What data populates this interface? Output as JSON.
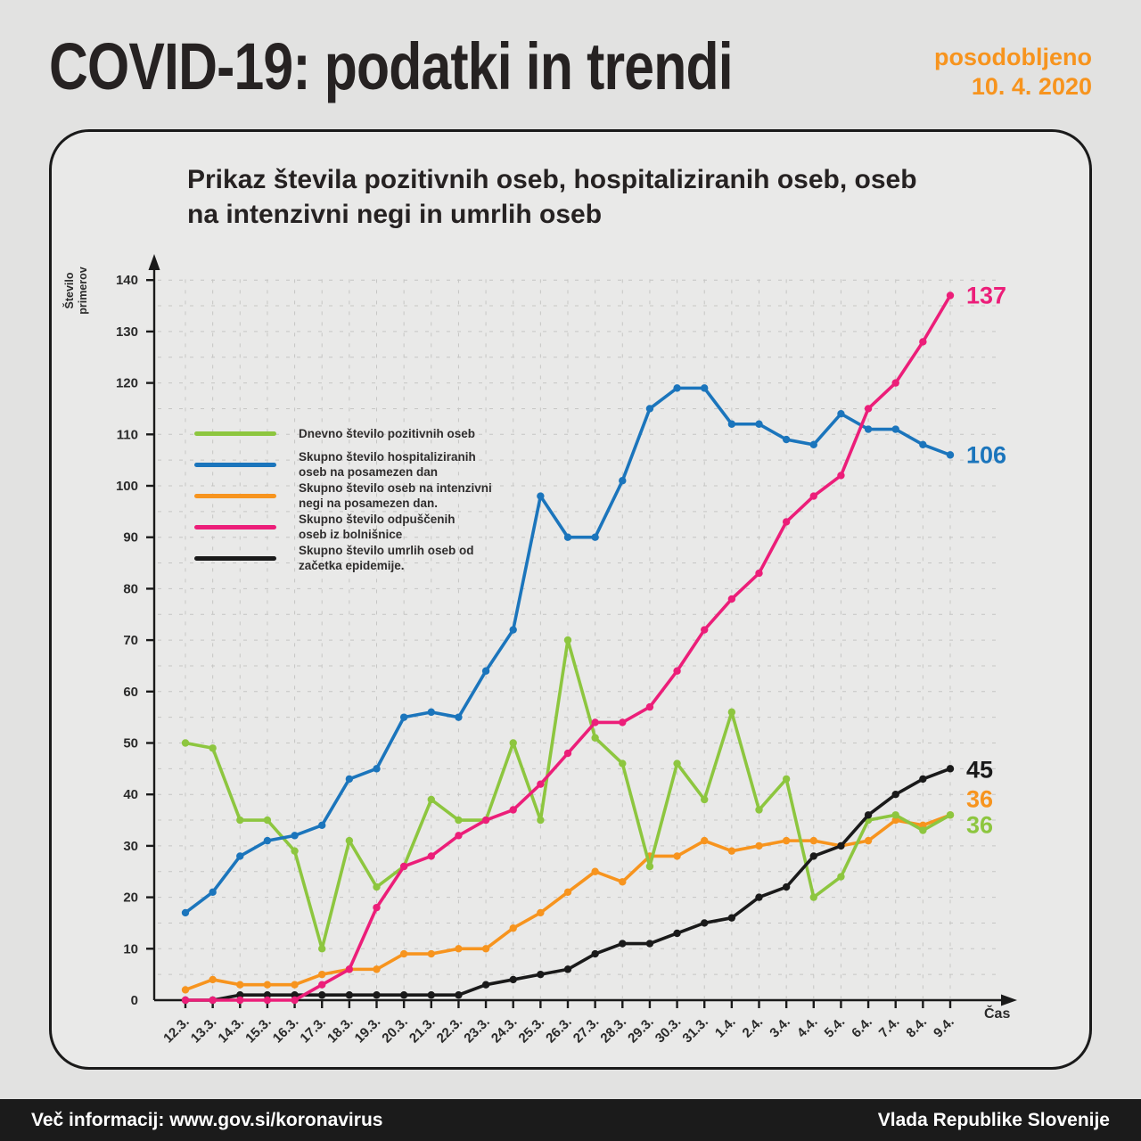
{
  "header": {
    "title": "COVID-19: podatki in trendi",
    "updated_line1": "posodobljeno",
    "updated_line2": "10. 4. 2020"
  },
  "panel": {
    "title": "Prikaz števila pozitivnih oseb, hospitaliziranih oseb, oseb\nna intenzivni negi in umrlih oseb"
  },
  "footer": {
    "left": "Več informacij: www.gov.si/koronavirus",
    "right": "Vlada Republike Slovenije"
  },
  "colors": {
    "accent_orange": "#f7941e",
    "page_background": "#e2e2e1",
    "panel_background": "#e9e9e8",
    "grid": "#c6c6c4",
    "axis": "#1a1a1a"
  },
  "chart_data": {
    "type": "line",
    "title": "Prikaz števila pozitivnih oseb, hospitaliziranih oseb, oseb na intenzivni negi in umrlih oseb",
    "xlabel": "Čas",
    "ylabel": "Število\nprimerov",
    "ylim": [
      0,
      140
    ],
    "ytick_step": 10,
    "grid_step": 5,
    "grid": true,
    "legend_position": "upper-left-inside",
    "categories": [
      "12.3.",
      "13.3.",
      "14.3.",
      "15.3.",
      "16.3.",
      "17.3.",
      "18.3.",
      "19.3.",
      "20.3.",
      "21.3.",
      "22.3.",
      "23.3.",
      "24.3.",
      "25.3.",
      "26.3.",
      "27.3.",
      "28.3.",
      "29.3.",
      "30.3.",
      "31.3.",
      "1.4.",
      "2.4.",
      "3.4.",
      "4.4.",
      "5.4.",
      "6.4.",
      "7.4.",
      "8.4.",
      "9.4."
    ],
    "series": [
      {
        "name": "Dnevno število pozitivnih oseb",
        "color": "#8dc63f",
        "end_label": "36",
        "values": [
          50,
          49,
          35,
          35,
          29,
          10,
          31,
          22,
          26,
          39,
          35,
          35,
          50,
          35,
          70,
          51,
          46,
          26,
          46,
          39,
          56,
          37,
          43,
          20,
          24,
          35,
          36,
          33,
          36
        ]
      },
      {
        "name": "Skupno število hospitaliziranih\noseb na posamezen dan",
        "color": "#1b75bc",
        "end_label": "106",
        "values": [
          17,
          21,
          28,
          31,
          32,
          34,
          43,
          45,
          55,
          56,
          55,
          64,
          72,
          98,
          90,
          90,
          101,
          115,
          119,
          119,
          112,
          112,
          109,
          108,
          114,
          111,
          111,
          108,
          106
        ]
      },
      {
        "name": "Skupno število oseb na intenzivni\nnegi na posamezen dan.",
        "color": "#f7941e",
        "end_label": "36",
        "values": [
          2,
          4,
          3,
          3,
          3,
          5,
          6,
          6,
          9,
          9,
          10,
          10,
          14,
          17,
          21,
          25,
          23,
          28,
          28,
          31,
          29,
          30,
          31,
          31,
          30,
          31,
          35,
          34,
          36
        ]
      },
      {
        "name": "Skupno število odpuščenih\noseb iz bolnišnice",
        "color": "#ec1e79",
        "end_label": "137",
        "values": [
          0,
          0,
          0,
          0,
          0,
          3,
          6,
          18,
          26,
          28,
          32,
          35,
          37,
          42,
          48,
          54,
          54,
          57,
          64,
          72,
          78,
          83,
          93,
          98,
          102,
          115,
          120,
          128,
          137
        ]
      },
      {
        "name": "Skupno število umrlih oseb od\nzačetka epidemije.",
        "color": "#1a1a1a",
        "end_label": "45",
        "values": [
          0,
          0,
          1,
          1,
          1,
          1,
          1,
          1,
          1,
          1,
          1,
          3,
          4,
          5,
          6,
          9,
          11,
          11,
          13,
          15,
          16,
          20,
          22,
          28,
          30,
          36,
          40,
          43,
          45
        ]
      }
    ]
  }
}
